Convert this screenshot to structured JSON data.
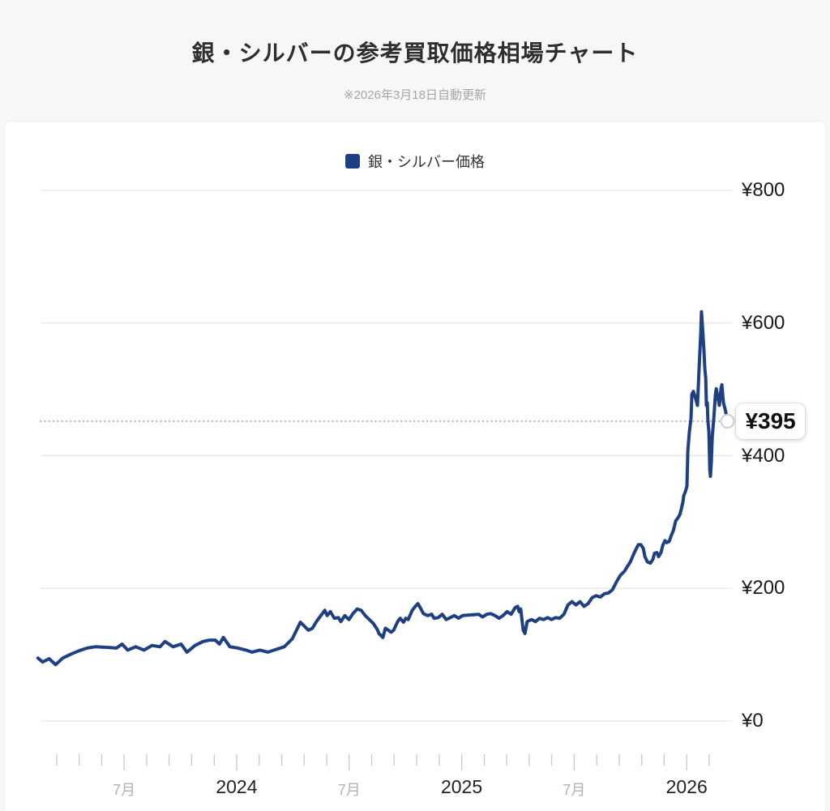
{
  "header": {
    "title": "銀・シルバーの参考買取価格相場チャート",
    "subtitle": "※2026年3月18日自動更新"
  },
  "legend": {
    "label": "銀・シルバー価格",
    "color": "#1e4082"
  },
  "chart_data": {
    "type": "line",
    "title": "銀・シルバーの参考買取価格相場チャート",
    "grid": "horizontal",
    "legend_position": "top-center",
    "marker_label": "¥395",
    "xlim": [
      2023.103,
      2026.21
    ],
    "ylim": [
      0,
      900
    ],
    "y_ticks": [
      {
        "v": 0,
        "label": "¥0"
      },
      {
        "v": 200,
        "label": "¥200"
      },
      {
        "v": 400,
        "label": "¥400"
      },
      {
        "v": 600,
        "label": "¥600"
      },
      {
        "v": 800,
        "label": "¥800"
      }
    ],
    "x_ticks": [
      {
        "t": 2023.19
      },
      {
        "t": 2023.29
      },
      {
        "t": 2023.391
      },
      {
        "t": 2023.491,
        "label": "7月",
        "kind": "month"
      },
      {
        "t": 2023.592
      },
      {
        "t": 2023.692
      },
      {
        "t": 2023.793
      },
      {
        "t": 2023.894
      },
      {
        "t": 2023.994,
        "label": "2024",
        "kind": "year"
      },
      {
        "t": 2024.095
      },
      {
        "t": 2024.196
      },
      {
        "t": 2024.296
      },
      {
        "t": 2024.397
      },
      {
        "t": 2024.497,
        "label": "7月",
        "kind": "month"
      },
      {
        "t": 2024.598
      },
      {
        "t": 2024.698
      },
      {
        "t": 2024.799
      },
      {
        "t": 2024.9
      },
      {
        "t": 2025.0,
        "label": "2025",
        "kind": "year"
      },
      {
        "t": 2025.101
      },
      {
        "t": 2025.201
      },
      {
        "t": 2025.302
      },
      {
        "t": 2025.402
      },
      {
        "t": 2025.503,
        "label": "7月",
        "kind": "month"
      },
      {
        "t": 2025.604
      },
      {
        "t": 2025.704
      },
      {
        "t": 2025.805
      },
      {
        "t": 2025.905
      },
      {
        "t": 2026.006,
        "label": "2026",
        "kind": "year"
      },
      {
        "t": 2026.106
      }
    ],
    "series": [
      {
        "name": "銀・シルバー価格",
        "color": "#1e4082",
        "points": [
          [
            2023.106,
            95
          ],
          [
            2023.127,
            89
          ],
          [
            2023.156,
            94
          ],
          [
            2023.185,
            85
          ],
          [
            2023.217,
            95
          ],
          [
            2023.254,
            101
          ],
          [
            2023.29,
            106
          ],
          [
            2023.326,
            110
          ],
          [
            2023.362,
            112
          ],
          [
            2023.42,
            111
          ],
          [
            2023.457,
            110
          ],
          [
            2023.482,
            116
          ],
          [
            2023.507,
            107
          ],
          [
            2023.543,
            112
          ],
          [
            2023.58,
            107
          ],
          [
            2023.616,
            114
          ],
          [
            2023.652,
            112
          ],
          [
            2023.674,
            120
          ],
          [
            2023.71,
            112
          ],
          [
            2023.746,
            116
          ],
          [
            2023.772,
            104
          ],
          [
            2023.808,
            114
          ],
          [
            2023.844,
            120
          ],
          [
            2023.873,
            122
          ],
          [
            2023.899,
            122
          ],
          [
            2023.917,
            116
          ],
          [
            2023.935,
            126
          ],
          [
            2023.964,
            112
          ],
          [
            2024.0,
            110
          ],
          [
            2024.036,
            107
          ],
          [
            2024.062,
            104
          ],
          [
            2024.098,
            107
          ],
          [
            2024.134,
            104
          ],
          [
            2024.17,
            108
          ],
          [
            2024.207,
            112
          ],
          [
            2024.243,
            124
          ],
          [
            2024.279,
            149
          ],
          [
            2024.315,
            137
          ],
          [
            2024.333,
            140
          ],
          [
            2024.351,
            150
          ],
          [
            2024.388,
            167
          ],
          [
            2024.399,
            159
          ],
          [
            2024.413,
            165
          ],
          [
            2024.431,
            155
          ],
          [
            2024.449,
            156
          ],
          [
            2024.46,
            150
          ],
          [
            2024.478,
            159
          ],
          [
            2024.496,
            153
          ],
          [
            2024.514,
            162
          ],
          [
            2024.533,
            169
          ],
          [
            2024.551,
            167
          ],
          [
            2024.569,
            159
          ],
          [
            2024.587,
            153
          ],
          [
            2024.605,
            147
          ],
          [
            2024.623,
            138
          ],
          [
            2024.63,
            132
          ],
          [
            2024.648,
            126
          ],
          [
            2024.659,
            140
          ],
          [
            2024.685,
            134
          ],
          [
            2024.696,
            137
          ],
          [
            2024.714,
            150
          ],
          [
            2024.725,
            155
          ],
          [
            2024.74,
            149
          ],
          [
            2024.75,
            155
          ],
          [
            2024.761,
            153
          ],
          [
            2024.779,
            167
          ],
          [
            2024.793,
            173
          ],
          [
            2024.804,
            177
          ],
          [
            2024.815,
            171
          ],
          [
            2024.829,
            162
          ],
          [
            2024.848,
            159
          ],
          [
            2024.866,
            161
          ],
          [
            2024.877,
            155
          ],
          [
            2024.895,
            156
          ],
          [
            2024.913,
            161
          ],
          [
            2024.931,
            153
          ],
          [
            2024.949,
            156
          ],
          [
            2024.967,
            159
          ],
          [
            2024.986,
            155
          ],
          [
            2025.004,
            159
          ],
          [
            2025.04,
            160
          ],
          [
            2025.076,
            161
          ],
          [
            2025.094,
            157
          ],
          [
            2025.112,
            161
          ],
          [
            2025.13,
            162
          ],
          [
            2025.149,
            159
          ],
          [
            2025.167,
            155
          ],
          [
            2025.185,
            159
          ],
          [
            2025.203,
            165
          ],
          [
            2025.221,
            161
          ],
          [
            2025.239,
            171
          ],
          [
            2025.25,
            173
          ],
          [
            2025.257,
            165
          ],
          [
            2025.264,
            169
          ],
          [
            2025.275,
            137
          ],
          [
            2025.283,
            132
          ],
          [
            2025.293,
            150
          ],
          [
            2025.312,
            153
          ],
          [
            2025.33,
            150
          ],
          [
            2025.348,
            155
          ],
          [
            2025.366,
            153
          ],
          [
            2025.384,
            156
          ],
          [
            2025.402,
            153
          ],
          [
            2025.42,
            156
          ],
          [
            2025.438,
            155
          ],
          [
            2025.457,
            161
          ],
          [
            2025.475,
            175
          ],
          [
            2025.493,
            180
          ],
          [
            2025.511,
            175
          ],
          [
            2025.529,
            180
          ],
          [
            2025.547,
            173
          ],
          [
            2025.565,
            177
          ],
          [
            2025.583,
            186
          ],
          [
            2025.601,
            189
          ],
          [
            2025.62,
            187
          ],
          [
            2025.638,
            192
          ],
          [
            2025.656,
            193
          ],
          [
            2025.674,
            198
          ],
          [
            2025.692,
            210
          ],
          [
            2025.71,
            220
          ],
          [
            2025.728,
            226
          ],
          [
            2025.739,
            232
          ],
          [
            2025.754,
            240
          ],
          [
            2025.772,
            254
          ],
          [
            2025.79,
            266
          ],
          [
            2025.801,
            266
          ],
          [
            2025.812,
            260
          ],
          [
            2025.819,
            248
          ],
          [
            2025.83,
            240
          ],
          [
            2025.844,
            238
          ],
          [
            2025.855,
            244
          ],
          [
            2025.862,
            253
          ],
          [
            2025.873,
            254
          ],
          [
            2025.88,
            248
          ],
          [
            2025.891,
            254
          ],
          [
            2025.899,
            265
          ],
          [
            2025.909,
            272
          ],
          [
            2025.917,
            269
          ],
          [
            2025.928,
            271
          ],
          [
            2025.935,
            278
          ],
          [
            2025.946,
            287
          ],
          [
            2025.957,
            302
          ],
          [
            2025.964,
            305
          ],
          [
            2025.975,
            311
          ],
          [
            2025.982,
            320
          ],
          [
            2025.989,
            330
          ],
          [
            2025.993,
            340
          ],
          [
            2026.0,
            346
          ],
          [
            2026.007,
            354
          ],
          [
            2026.011,
            407
          ],
          [
            2026.018,
            436
          ],
          [
            2026.025,
            456
          ],
          [
            2026.029,
            493
          ],
          [
            2026.036,
            497
          ],
          [
            2026.047,
            485
          ],
          [
            2026.054,
            476
          ],
          [
            2026.062,
            537
          ],
          [
            2026.069,
            586
          ],
          [
            2026.072,
            617
          ],
          [
            2026.076,
            598
          ],
          [
            2026.083,
            558
          ],
          [
            2026.087,
            531
          ],
          [
            2026.091,
            517
          ],
          [
            2026.094,
            476
          ],
          [
            2026.098,
            480
          ],
          [
            2026.101,
            452
          ],
          [
            2026.105,
            436
          ],
          [
            2026.109,
            379
          ],
          [
            2026.112,
            369
          ],
          [
            2026.116,
            391
          ],
          [
            2026.12,
            428
          ],
          [
            2026.127,
            456
          ],
          [
            2026.134,
            492
          ],
          [
            2026.138,
            501
          ],
          [
            2026.145,
            488
          ],
          [
            2026.152,
            476
          ],
          [
            2026.159,
            501
          ],
          [
            2026.163,
            507
          ],
          [
            2026.17,
            480
          ],
          [
            2026.178,
            470
          ],
          [
            2026.188,
            452
          ]
        ]
      }
    ]
  }
}
